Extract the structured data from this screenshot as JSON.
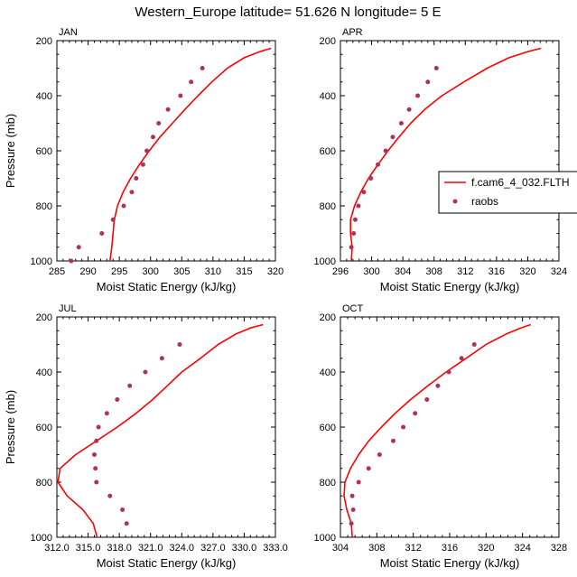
{
  "title": "Western_Europe  latitude= 51.626 N longitude= 5 E",
  "legend": {
    "model_label": "f.cam6_4_032.FLTH",
    "obs_label": "raobs",
    "model_color": "#ff0000",
    "obs_color": "#b03060"
  },
  "chart_data": [
    {
      "type": "line",
      "panel_label": "JAN",
      "xlabel": "Moist Static Energy (kJ/kg)",
      "ylabel": "Pressure (mb)",
      "xlim": [
        285,
        320
      ],
      "ylim": [
        1000,
        200
      ],
      "xticks": [
        285,
        290,
        295,
        300,
        305,
        310,
        315,
        320
      ],
      "xtick_labels": [
        "285",
        "290",
        "295",
        "300",
        "305",
        "310",
        "315",
        "320"
      ],
      "yticks": [
        200,
        400,
        600,
        800,
        1000
      ],
      "ytick_labels": [
        "200",
        "400",
        "600",
        "800",
        "1000"
      ],
      "model": {
        "x": [
          293.5,
          293.8,
          294.0,
          294.2,
          294.7,
          295.6,
          296.8,
          298.2,
          299.8,
          301.5,
          303.5,
          305.5,
          307.6,
          309.8,
          312.3,
          315.0,
          317.5,
          319.3
        ],
        "y": [
          1000,
          950,
          900,
          850,
          800,
          750,
          700,
          650,
          600,
          550,
          500,
          450,
          400,
          350,
          300,
          262,
          240,
          228
        ]
      },
      "obs": {
        "x": [
          287.3,
          288.5,
          292.2,
          294.0,
          295.7,
          297.0,
          297.7,
          298.8,
          299.4,
          300.4,
          301.3,
          302.8,
          304.8,
          306.5,
          308.3
        ],
        "y": [
          1000,
          950,
          900,
          850,
          800,
          750,
          700,
          650,
          600,
          550,
          500,
          450,
          400,
          350,
          300
        ]
      }
    },
    {
      "type": "line",
      "panel_label": "APR",
      "xlabel": "Moist Static Energy (kJ/kg)",
      "ylabel": "",
      "xlim": [
        296,
        324
      ],
      "ylim": [
        1000,
        200
      ],
      "xticks": [
        296,
        300,
        304,
        308,
        312,
        316,
        320,
        324
      ],
      "xtick_labels": [
        "296",
        "300",
        "304",
        "308",
        "312",
        "316",
        "320",
        "324"
      ],
      "yticks": [
        200,
        400,
        600,
        800,
        1000
      ],
      "ytick_labels": [
        "200",
        "400",
        "600",
        "800",
        "1000"
      ],
      "model": {
        "x": [
          297.4,
          297.5,
          297.3,
          297.3,
          297.8,
          298.6,
          299.6,
          300.8,
          302.1,
          303.5,
          305.0,
          306.8,
          309.0,
          311.8,
          314.8,
          317.6,
          320.0,
          321.7
        ],
        "y": [
          1000,
          950,
          900,
          850,
          800,
          750,
          700,
          650,
          600,
          550,
          500,
          450,
          400,
          350,
          300,
          262,
          240,
          228
        ]
      },
      "obs": {
        "x": [
          297.4,
          297.7,
          297.9,
          298.3,
          299.0,
          299.9,
          300.8,
          301.8,
          302.7,
          303.8,
          304.8,
          305.9,
          307.2,
          308.3
        ],
        "y": [
          950,
          900,
          850,
          800,
          750,
          700,
          650,
          600,
          550,
          500,
          450,
          400,
          350,
          300
        ]
      }
    },
    {
      "type": "line",
      "panel_label": "JUL",
      "xlabel": "Moist Static Energy (kJ/kg)",
      "ylabel": "Pressure (mb)",
      "xlim": [
        312,
        333
      ],
      "ylim": [
        1000,
        200
      ],
      "xticks": [
        312,
        315,
        318,
        321,
        324,
        327,
        330,
        333
      ],
      "xtick_labels": [
        "312.0",
        "315.0",
        "318.0",
        "321.0",
        "324.0",
        "327.0",
        "330.0",
        "333.0"
      ],
      "yticks": [
        200,
        400,
        600,
        800,
        1000
      ],
      "ytick_labels": [
        "200",
        "400",
        "600",
        "800",
        "1000"
      ],
      "model": {
        "x": [
          315.9,
          315.5,
          314.5,
          313.0,
          312.1,
          312.3,
          313.8,
          315.8,
          317.8,
          319.6,
          321.2,
          322.6,
          324.0,
          325.8,
          327.5,
          329.2,
          330.6,
          331.8
        ],
        "y": [
          1005,
          950,
          900,
          850,
          800,
          750,
          700,
          650,
          600,
          550,
          500,
          450,
          400,
          350,
          300,
          262,
          240,
          228
        ]
      },
      "obs": {
        "x": [
          318.7,
          318.3,
          317.1,
          315.8,
          315.7,
          315.6,
          315.8,
          316.0,
          316.8,
          317.8,
          319.0,
          320.5,
          322.1,
          323.8
        ],
        "y": [
          950,
          900,
          850,
          800,
          750,
          700,
          650,
          600,
          550,
          500,
          450,
          400,
          350,
          300
        ]
      }
    },
    {
      "type": "line",
      "panel_label": "OCT",
      "xlabel": "Moist Static Energy (kJ/kg)",
      "ylabel": "",
      "xlim": [
        304,
        328
      ],
      "ylim": [
        1000,
        200
      ],
      "xticks": [
        304,
        308,
        312,
        316,
        320,
        324,
        328
      ],
      "xtick_labels": [
        "304",
        "308",
        "312",
        "316",
        "320",
        "324",
        "328"
      ],
      "yticks": [
        200,
        400,
        600,
        800,
        1000
      ],
      "ytick_labels": [
        "200",
        "400",
        "600",
        "800",
        "1000"
      ],
      "model": {
        "x": [
          305.3,
          305.2,
          304.7,
          304.4,
          304.5,
          305.1,
          306.0,
          307.1,
          308.5,
          310.0,
          311.7,
          313.6,
          315.6,
          317.8,
          320.0,
          322.2,
          323.8,
          324.9
        ],
        "y": [
          1000,
          950,
          900,
          850,
          800,
          750,
          700,
          650,
          600,
          550,
          500,
          450,
          400,
          350,
          300,
          262,
          240,
          228
        ]
      },
      "obs": {
        "x": [
          305.2,
          305.4,
          305.3,
          306.0,
          307.1,
          308.3,
          309.8,
          310.9,
          312.2,
          313.5,
          314.7,
          315.9,
          317.3,
          318.7
        ],
        "y": [
          950,
          900,
          850,
          800,
          750,
          700,
          650,
          600,
          550,
          500,
          450,
          400,
          350,
          300
        ]
      }
    }
  ]
}
